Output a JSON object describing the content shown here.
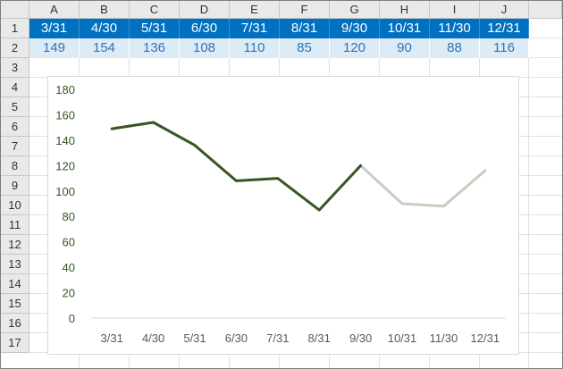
{
  "columns": [
    "A",
    "B",
    "C",
    "D",
    "E",
    "F",
    "G",
    "H",
    "I",
    "J"
  ],
  "rows": [
    "1",
    "2",
    "3",
    "4",
    "5",
    "6",
    "7",
    "8",
    "9",
    "10",
    "11",
    "12",
    "13",
    "14",
    "15",
    "16",
    "17"
  ],
  "table": {
    "headers": [
      "3/31",
      "4/30",
      "5/31",
      "6/30",
      "7/31",
      "8/31",
      "9/30",
      "10/31",
      "11/30",
      "12/31"
    ],
    "values": [
      "149",
      "154",
      "136",
      "108",
      "110",
      "85",
      "120",
      "90",
      "88",
      "116"
    ]
  },
  "colors": {
    "header_fill": "#0070c0",
    "header_text": "#ffffff",
    "value_fill": "#ddebf7",
    "value_text": "#2e75b6",
    "actual_line": "#375623",
    "forecast_line": "#c9cdbf",
    "axis_text": "#375623"
  },
  "chart_data": {
    "type": "line",
    "categories": [
      "3/31",
      "4/30",
      "5/31",
      "6/30",
      "7/31",
      "8/31",
      "9/30",
      "10/31",
      "11/30",
      "12/31"
    ],
    "series": [
      {
        "values": [
          149,
          154,
          136,
          108,
          110,
          85,
          120,
          null,
          null,
          null
        ],
        "color": "#375623"
      },
      {
        "values": [
          null,
          null,
          null,
          null,
          null,
          null,
          120,
          90,
          88,
          116
        ],
        "color": "#c9cdbf"
      }
    ],
    "yticks": [
      "0",
      "20",
      "40",
      "60",
      "80",
      "100",
      "120",
      "140",
      "160",
      "180"
    ],
    "ylim": [
      0,
      180
    ],
    "grid": false,
    "legend": "none",
    "title": "",
    "xlabel": "",
    "ylabel": ""
  }
}
